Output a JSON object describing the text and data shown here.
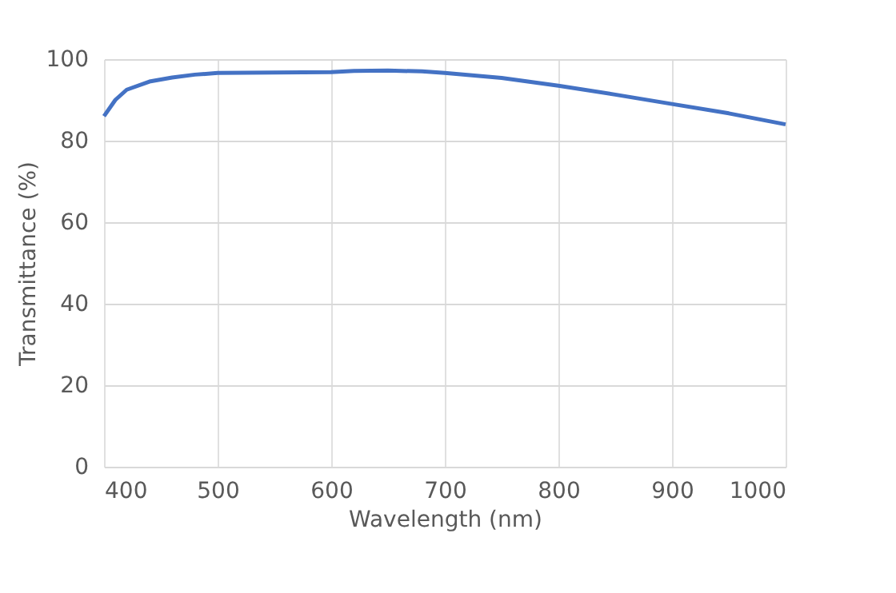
{
  "chart_data": {
    "type": "line",
    "xlabel": "Wavelength (nm)",
    "ylabel": "Transmittance (%)",
    "x": [
      400,
      410,
      420,
      440,
      460,
      480,
      500,
      550,
      600,
      620,
      650,
      680,
      700,
      750,
      800,
      850,
      900,
      950,
      1000
    ],
    "series": [
      {
        "color": "#4472c4",
        "values": [
          86,
          90,
          92.5,
          94.5,
          95.5,
          96.2,
          96.6,
          96.7,
          96.8,
          97.1,
          97.2,
          97.0,
          96.6,
          95.4,
          93.5,
          91.3,
          89,
          86.7,
          84
        ]
      }
    ],
    "xlim": [
      400,
      1000
    ],
    "xticks": [
      400,
      500,
      600,
      700,
      800,
      900,
      1000
    ],
    "ylim": [
      0,
      100
    ],
    "yticks": [
      0,
      20,
      40,
      60,
      80,
      100
    ],
    "grid": true,
    "marker": "none",
    "line_style": "solid"
  }
}
